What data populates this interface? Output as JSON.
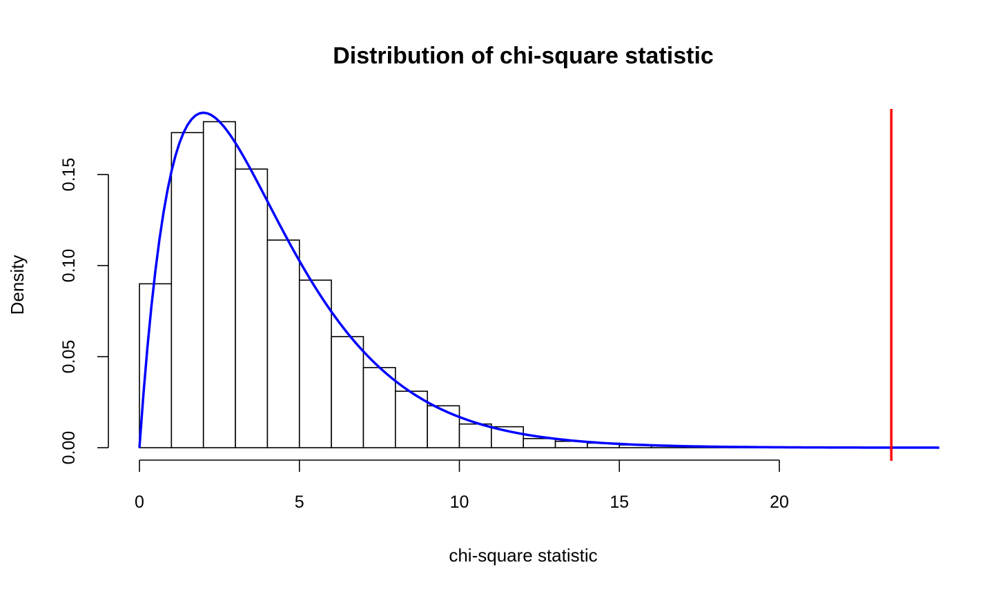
{
  "chart_data": {
    "type": "bar",
    "title": "Distribution of chi-square statistic",
    "xlabel": "chi-square statistic",
    "ylabel": "Density",
    "xlim": [
      -1,
      24
    ],
    "ylim": [
      0,
      0.185
    ],
    "x_ticks": [
      {
        "value": 0,
        "label": "0"
      },
      {
        "value": 5,
        "label": "5"
      },
      {
        "value": 10,
        "label": "10"
      },
      {
        "value": 15,
        "label": "15"
      },
      {
        "value": 20,
        "label": "20"
      }
    ],
    "y_ticks": [
      {
        "value": 0,
        "label": "0.00"
      },
      {
        "value": 0.05,
        "label": "0.05"
      },
      {
        "value": 0.1,
        "label": "0.10"
      },
      {
        "value": 0.15,
        "label": "0.15"
      }
    ],
    "bin_edges": [
      0,
      1,
      2,
      3,
      4,
      5,
      6,
      7,
      8,
      9,
      10,
      11,
      12,
      13,
      14,
      15,
      16,
      17,
      18,
      19,
      20
    ],
    "values": [
      0.09,
      0.173,
      0.179,
      0.153,
      0.114,
      0.092,
      0.061,
      0.044,
      0.031,
      0.023,
      0.013,
      0.0115,
      0.005,
      0.0035,
      0.0025,
      0.0015,
      0.001,
      0.0005,
      0.0003,
      0.0002
    ],
    "density_curve": {
      "distribution": "chi-square",
      "df": 4,
      "x_range": [
        0,
        25
      ],
      "color": "#0000ff"
    },
    "observed_line": {
      "x": 23.5,
      "color": "#ff0000"
    },
    "grid": false,
    "legend": "none"
  }
}
